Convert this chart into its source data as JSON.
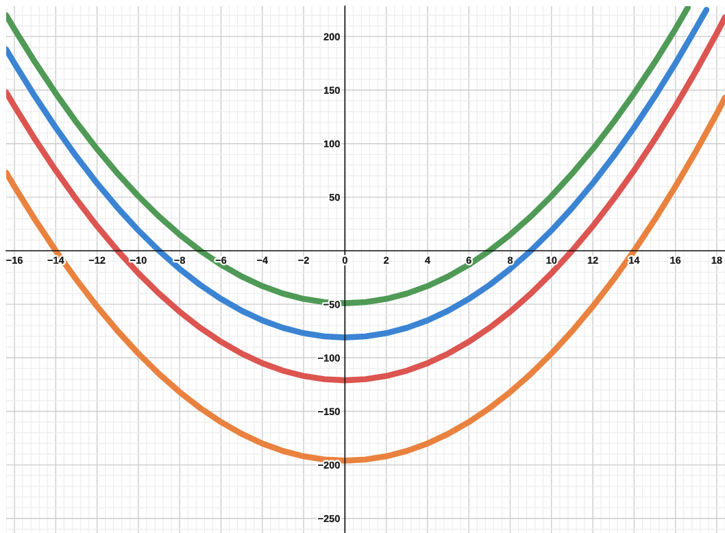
{
  "chart_data": {
    "type": "line",
    "xlim": [
      -16.4,
      18.4
    ],
    "ylim": [
      -263.6,
      228.4
    ],
    "xticks": [
      -16,
      -14,
      -12,
      -10,
      -8,
      -6,
      -4,
      -2,
      0,
      2,
      4,
      6,
      8,
      10,
      12,
      14,
      16,
      18
    ],
    "yticks": [
      -250,
      -200,
      -150,
      -100,
      -50,
      50,
      100,
      150,
      200
    ],
    "grid": true,
    "series": [
      {
        "color": "#4f9a56",
        "x": [
          -16.4,
          -16,
          -15,
          -14,
          -13,
          -12,
          -11,
          -10,
          -9,
          -8,
          -7,
          -6,
          -5,
          -4,
          -3,
          -2,
          -1,
          0,
          1,
          2,
          3,
          4,
          5,
          6,
          7,
          8,
          9,
          10,
          11,
          12,
          13,
          14,
          15,
          16,
          16.6
        ],
        "values": [
          220,
          207,
          176,
          147,
          120,
          95,
          72,
          51,
          32,
          15,
          0,
          -13,
          -24,
          -33,
          -40,
          -45,
          -48,
          -49,
          -48,
          -45,
          -40,
          -33,
          -24,
          -13,
          0,
          15,
          32,
          51,
          72,
          95,
          120,
          147,
          176,
          207,
          227
        ]
      },
      {
        "color": "#3b84d3",
        "x": [
          -16.4,
          -16,
          -15,
          -14,
          -13,
          -12,
          -11,
          -10,
          -9,
          -8,
          -7,
          -6,
          -5,
          -4,
          -3,
          -2,
          -1,
          0,
          1,
          2,
          3,
          4,
          5,
          6,
          7,
          8,
          9,
          10,
          11,
          12,
          13,
          14,
          15,
          16,
          17,
          17.5
        ],
        "values": [
          188,
          175,
          144,
          115,
          88,
          63,
          40,
          19,
          0,
          -17,
          -32,
          -45,
          -56,
          -65,
          -72,
          -77,
          -80,
          -81,
          -80,
          -77,
          -72,
          -65,
          -56,
          -45,
          -32,
          -17,
          0,
          19,
          40,
          63,
          88,
          115,
          144,
          175,
          208,
          225
        ]
      },
      {
        "color": "#dc5550",
        "x": [
          -16.4,
          -16,
          -15,
          -14,
          -13,
          -12,
          -11,
          -10,
          -9,
          -8,
          -7,
          -6,
          -5,
          -4,
          -3,
          -2,
          -1,
          0,
          1,
          2,
          3,
          4,
          5,
          6,
          7,
          8,
          9,
          10,
          11,
          12,
          13,
          14,
          15,
          16,
          17,
          18,
          18.4
        ],
        "values": [
          148,
          135,
          104,
          75,
          48,
          23,
          0,
          -21,
          -40,
          -57,
          -72,
          -85,
          -96,
          -105,
          -112,
          -117,
          -120,
          -121,
          -120,
          -117,
          -112,
          -105,
          -96,
          -85,
          -72,
          -57,
          -40,
          -21,
          0,
          23,
          48,
          75,
          104,
          135,
          168,
          203,
          218
        ]
      },
      {
        "color": "#e9823f",
        "x": [
          -16.4,
          -16,
          -15,
          -14,
          -13,
          -12,
          -11,
          -10,
          -9,
          -8,
          -7,
          -6,
          -5,
          -4,
          -3,
          -2,
          -1,
          0,
          1,
          2,
          3,
          4,
          5,
          6,
          7,
          8,
          9,
          10,
          11,
          12,
          13,
          14,
          15,
          16,
          17,
          18,
          18.4
        ],
        "values": [
          73,
          60,
          29,
          0,
          -27,
          -52,
          -75,
          -96,
          -115,
          -132,
          -147,
          -160,
          -171,
          -180,
          -187,
          -192,
          -195,
          -196,
          -195,
          -192,
          -187,
          -180,
          -171,
          -160,
          -147,
          -132,
          -115,
          -96,
          -75,
          -52,
          -27,
          0,
          29,
          60,
          93,
          128,
          143
        ]
      }
    ]
  }
}
